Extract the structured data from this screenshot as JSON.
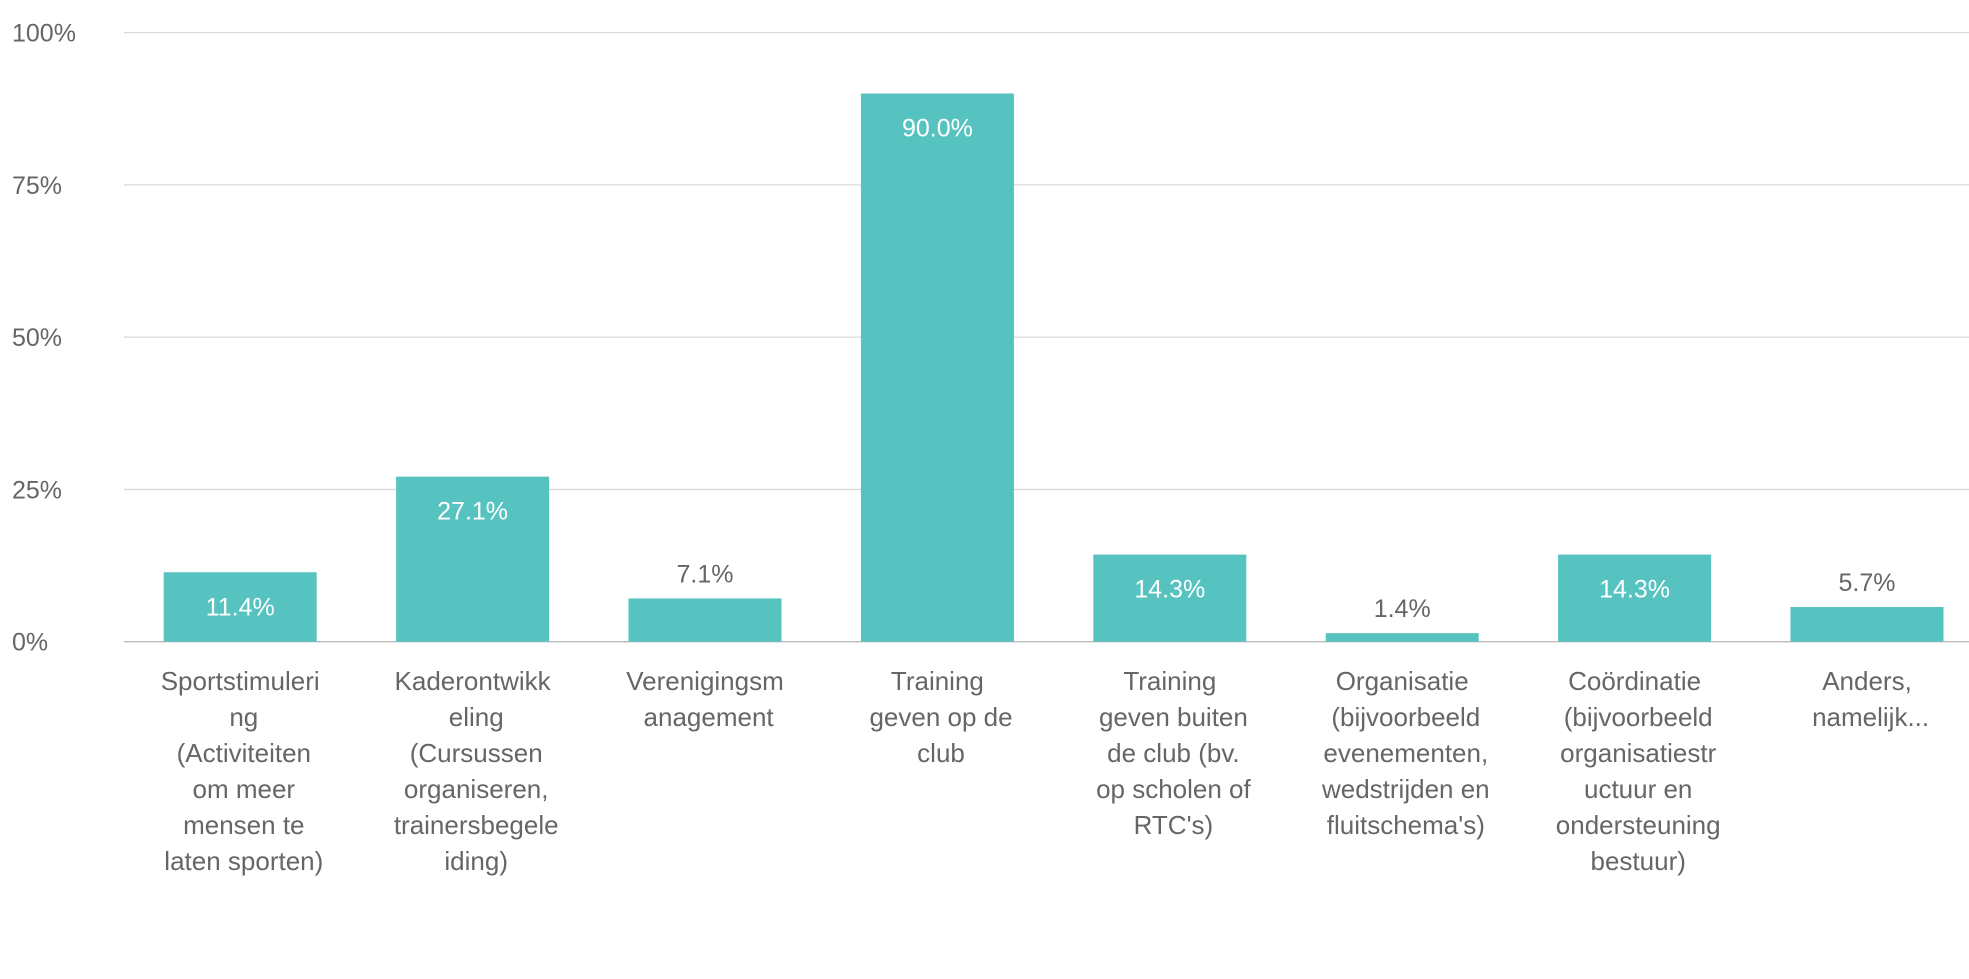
{
  "chart_data": {
    "type": "bar",
    "categories": [
      "Sportstimulering (Activiteiten om meer mensen te laten sporten)",
      "Kaderontwikkeling (Cursussen organiseren, trainersbegeleiding)",
      "Verenigingsmanagement",
      "Training geven op de club",
      "Training geven buiten de club (bv. op scholen of RTC's)",
      "Organisatie (bijvoorbeeld evenementen, wedstrijden en fluitschema's)",
      "Coördinatie (bijvoorbeeld organisatiestructuur en ondersteuning bestuur)",
      "Anders, namelijk..."
    ],
    "values": [
      11.4,
      27.1,
      7.1,
      90.0,
      14.3,
      1.4,
      14.3,
      5.7
    ],
    "value_labels": [
      "11.4%",
      "27.1%",
      "7.1%",
      "90.0%",
      "14.3%",
      "1.4%",
      "14.3%",
      "5.7%"
    ],
    "color": "#57c3c0",
    "ylim": [
      0,
      100
    ],
    "yticks": [
      {
        "value": 0,
        "label": "0%"
      },
      {
        "value": 25,
        "label": "25%"
      },
      {
        "value": 50,
        "label": "50%"
      },
      {
        "value": 75,
        "label": "75%"
      },
      {
        "value": 100,
        "label": "100%"
      }
    ],
    "grid": true
  }
}
